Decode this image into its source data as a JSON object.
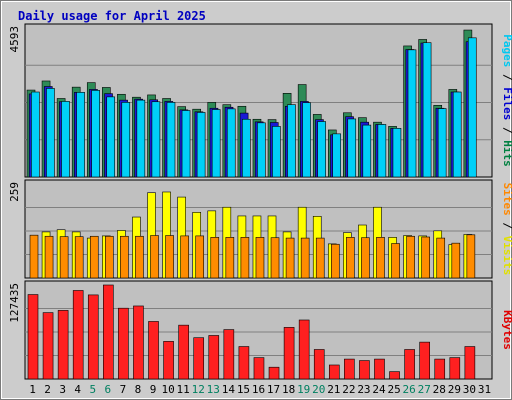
{
  "chart_data": {
    "type": "bar",
    "title": "Daily usage for April 2025",
    "categories": [
      "1",
      "2",
      "3",
      "4",
      "5",
      "6",
      "7",
      "8",
      "9",
      "10",
      "11",
      "12",
      "13",
      "14",
      "15",
      "16",
      "17",
      "18",
      "19",
      "20",
      "21",
      "22",
      "23",
      "24",
      "25",
      "26",
      "27",
      "28",
      "29",
      "30",
      "31"
    ],
    "weekend_days": [
      "5",
      "6",
      "12",
      "13",
      "19",
      "20",
      "26",
      "27"
    ],
    "panels": [
      {
        "name": "hits-files-pages",
        "ymax_label": "4593",
        "ymax": 4593,
        "side_labels": [
          "Pages",
          "Files",
          "Hits"
        ],
        "side_label_colors": [
          "#00c8f0",
          "#0000d0",
          "#008040"
        ],
        "series": [
          {
            "name": "Hits",
            "color": "#2e8b57",
            "values": [
              2680,
              2960,
              2420,
              2770,
              2910,
              2760,
              2550,
              2460,
              2530,
              2420,
              2170,
              2090,
              2300,
              2230,
              2180,
              1780,
              1770,
              2580,
              2850,
              1930,
              1450,
              1980,
              1830,
              1690,
              1560,
              4040,
              4240,
              2210,
              2700,
              4530,
              null
            ]
          },
          {
            "name": "Files",
            "color": "#1a1ad6",
            "values": [
              2560,
              2790,
              2320,
              2610,
              2700,
              2570,
              2370,
              2400,
              2380,
              2330,
              2070,
              2010,
              2120,
              2150,
              1970,
              1700,
              1680,
              2180,
              2330,
              1770,
              1300,
              1860,
              1690,
              1620,
              1500,
              3930,
              4130,
              2120,
              2620,
              4170,
              null
            ]
          },
          {
            "name": "Pages",
            "color": "#00d0f8",
            "values": [
              2620,
              2730,
              2330,
              2610,
              2670,
              2470,
              2300,
              2370,
              2320,
              2300,
              2050,
              1990,
              2080,
              2100,
              1780,
              1670,
              1560,
              2230,
              2290,
              1710,
              1330,
              1790,
              1600,
              1620,
              1500,
              3920,
              4140,
              2110,
              2620,
              4290,
              null
            ]
          }
        ]
      },
      {
        "name": "visits-sites",
        "ymax_label": "259",
        "ymax": 259,
        "side_labels": [
          "Sites",
          "Visits"
        ],
        "side_label_colors": [
          "#ff8800",
          "#e0e000"
        ],
        "series": [
          {
            "name": "Visits",
            "color": "#ffff00",
            "values": [
              null,
              127,
              133,
              127,
              110,
              116,
              131,
              168,
              235,
              237,
              223,
              181,
              185,
              195,
              171,
              171,
              171,
              127,
              195,
              170,
              94,
              125,
              146,
              195,
              112,
              117,
              116,
              130,
              92,
              120,
              null
            ]
          },
          {
            "name": "Sites",
            "color": "#ff8c00",
            "values": [
              118,
              115,
              114,
              114,
              115,
              115,
              115,
              115,
              117,
              117,
              116,
              116,
              112,
              112,
              112,
              112,
              111,
              110,
              110,
              110,
              93,
              112,
              111,
              112,
              95,
              115,
              113,
              110,
              96,
              119,
              null
            ]
          }
        ]
      },
      {
        "name": "kbytes",
        "ymax_label": "127435",
        "ymax": 127435,
        "side_labels": [
          "KBytes"
        ],
        "side_label_colors": [
          "#e00000"
        ],
        "series": [
          {
            "name": "KBytes",
            "color": "#ff2020",
            "values": [
              114500,
              90000,
              93000,
              120000,
              114000,
              127435,
              96000,
              99000,
              78000,
              51000,
              73000,
              56000,
              59000,
              67000,
              44000,
              29000,
              16000,
              70000,
              80000,
              40000,
              19000,
              27000,
              25000,
              27000,
              10000,
              40000,
              50000,
              27000,
              29000,
              44000,
              null
            ]
          }
        ]
      }
    ]
  }
}
